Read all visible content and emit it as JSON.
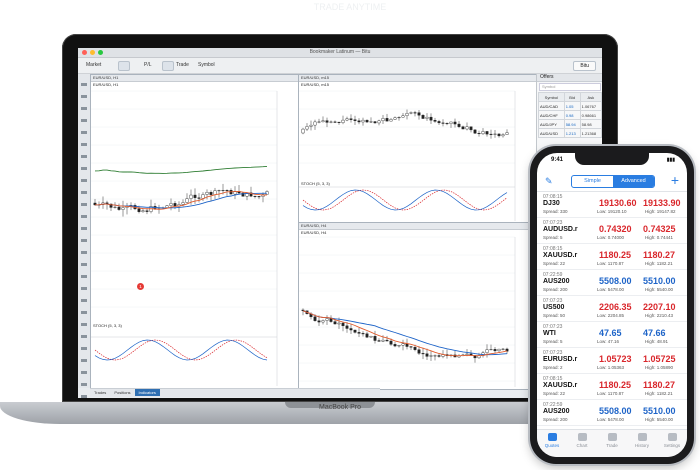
{
  "faint_header": "TRADE ANYTIME",
  "laptop": {
    "brand": "MacBook Pro",
    "window_title": "Bookmaker Latinum — Bitu",
    "toolbar": {
      "items": [
        "Market",
        "P/L",
        "Trade",
        "Symbol"
      ],
      "user": "Bitu"
    },
    "charts": [
      {
        "header": "EUR/USD, H1",
        "title": "EUR/USD, H1",
        "indicator": "STOCH (5, 3, 3)"
      },
      {
        "header": "EUR/USD, m15",
        "title": "EUR/USD, m15",
        "indicator": "STOCH (5, 3, 3)"
      },
      {
        "header": "EUR/USD, H4",
        "title": "EUR/USD, H4",
        "indicator": ""
      }
    ],
    "bottom_tabs": [
      "Trades",
      "Positions",
      "Indicators"
    ],
    "offers": {
      "title": "Offers",
      "search_placeholder": "Symbol",
      "columns": [
        "Symbol",
        "Bid",
        "Ask"
      ],
      "rows": [
        {
          "symbol": "AUD/CAD",
          "bid": "1.05",
          "ask": "1.06767"
        },
        {
          "symbol": "AUD/CHF",
          "bid": "0.98",
          "ask": "0.98661"
        },
        {
          "symbol": "AUD/JPY",
          "bid": "58.94",
          "ask": "58.98"
        },
        {
          "symbol": "AUD/USD",
          "bid": "1.213",
          "ask": "1.21368"
        }
      ]
    }
  },
  "phone": {
    "status_time": "9:41",
    "segments": [
      "Simple",
      "Advanced"
    ],
    "active_segment": "Advanced",
    "quotes": [
      {
        "time": "07:08:15",
        "symbol": "DJ30",
        "spread": "Spread: 330",
        "bid": "19130.60",
        "ask": "19133.90",
        "low": "Low: 19120.10",
        "high": "High: 19147.82",
        "bid_dir": "dn",
        "ask_dir": "dn"
      },
      {
        "time": "07:07:23",
        "symbol": "AUDUSD.r",
        "spread": "Spread: 5",
        "bid": "0.74320",
        "ask": "0.74325",
        "low": "Low: 0.74000",
        "high": "High: 0.74441",
        "bid_dir": "dn",
        "ask_dir": "dn"
      },
      {
        "time": "07:08:15",
        "symbol": "XAUUSD.r",
        "spread": "Spread: 22",
        "bid": "1180.25",
        "ask": "1180.27",
        "low": "Low: 1170.87",
        "high": "High: 1182.21",
        "bid_dir": "dn",
        "ask_dir": "dn"
      },
      {
        "time": "07:22:59",
        "symbol": "AUS200",
        "spread": "Spread: 200",
        "bid": "5508.00",
        "ask": "5510.00",
        "low": "Low: 5478.00",
        "high": "High: 5540.00",
        "bid_dir": "up",
        "ask_dir": "up"
      },
      {
        "time": "07:07:23",
        "symbol": "US500",
        "spread": "Spread: 50",
        "bid": "2206.35",
        "ask": "2207.10",
        "low": "Low: 2204.85",
        "high": "High: 2210.43",
        "bid_dir": "dn",
        "ask_dir": "dn"
      },
      {
        "time": "07:07:23",
        "symbol": "WTI",
        "spread": "Spread: 5",
        "bid": "47.65",
        "ask": "47.66",
        "low": "Low: 47.16",
        "high": "High: 48.91",
        "bid_dir": "up",
        "ask_dir": "up"
      },
      {
        "time": "07:07:23",
        "symbol": "EURUSD.r",
        "spread": "Spread: 2",
        "bid": "1.05723",
        "ask": "1.05725",
        "low": "Low: 1.05363",
        "high": "High: 1.05890",
        "bid_dir": "dn",
        "ask_dir": "dn"
      },
      {
        "time": "07:08:15",
        "symbol": "XAUUSD.r",
        "spread": "Spread: 22",
        "bid": "1180.25",
        "ask": "1180.27",
        "low": "Low: 1170.87",
        "high": "High: 1182.21",
        "bid_dir": "dn",
        "ask_dir": "dn"
      },
      {
        "time": "07:22:59",
        "symbol": "AUS200",
        "spread": "Spread: 200",
        "bid": "5508.00",
        "ask": "5510.00",
        "low": "Low: 5478.00",
        "high": "High: 5540.00",
        "bid_dir": "up",
        "ask_dir": "up"
      }
    ],
    "tabs": [
      "Quotes",
      "Chart",
      "Trade",
      "History",
      "Settings"
    ],
    "active_tab": "Quotes",
    "badge": "1"
  },
  "colors": {
    "accent": "#2a7de1",
    "up": "#1e64c8",
    "down": "#d9262b"
  }
}
